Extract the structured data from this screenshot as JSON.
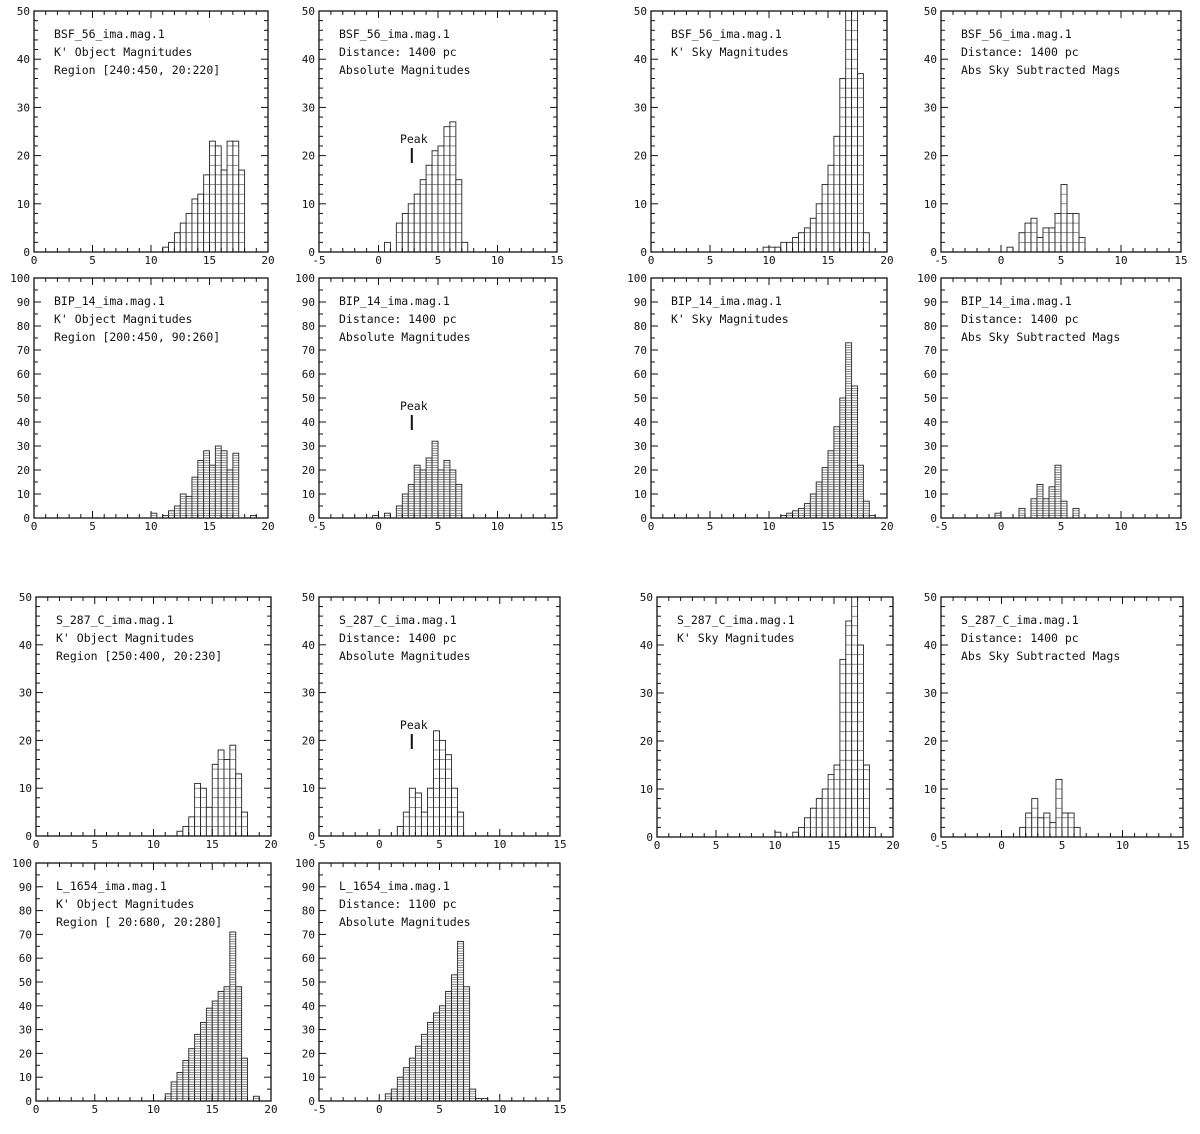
{
  "chart_data": [
    {
      "type": "bar",
      "label_lines": [
        "BSF_56_ima.mag.1",
        "K' Object Magnitudes",
        "Region [240:450, 20:220]"
      ],
      "xlim": [
        0,
        20
      ],
      "ylim": [
        0,
        50
      ],
      "bin_width": 0.5,
      "xticks": [
        0,
        5,
        10,
        15,
        20
      ],
      "yticks": [
        0,
        10,
        20,
        30,
        40,
        50
      ],
      "x": [
        11,
        11.5,
        12,
        12.5,
        13,
        13.5,
        14,
        14.5,
        15,
        15.5,
        16,
        16.5,
        17,
        17.5
      ],
      "values": [
        1,
        2,
        4,
        6,
        8,
        11,
        12,
        16,
        23,
        22,
        17,
        23,
        23,
        17
      ]
    },
    {
      "type": "bar",
      "label_lines": [
        "BSF_56_ima.mag.1",
        "Distance: 1400  pc",
        "Absolute Magnitudes"
      ],
      "xlim": [
        -5,
        15
      ],
      "ylim": [
        0,
        50
      ],
      "bin_width": 0.5,
      "xticks": [
        -5,
        0,
        5,
        10,
        15
      ],
      "yticks": [
        0,
        10,
        20,
        30,
        40,
        50
      ],
      "peak": {
        "x": 2.8,
        "text": "Peak"
      },
      "x": [
        0.5,
        1.5,
        2,
        2.5,
        3,
        3.5,
        4,
        4.5,
        5,
        5.5,
        6,
        6.5,
        7
      ],
      "values": [
        2,
        6,
        8,
        10,
        12,
        15,
        18,
        21,
        22,
        26,
        27,
        15,
        2
      ]
    },
    {
      "type": "bar",
      "label_lines": [
        "BSF_56_ima.mag.1",
        "K' Sky Magnitudes"
      ],
      "xlim": [
        0,
        20
      ],
      "ylim": [
        0,
        50
      ],
      "bin_width": 0.5,
      "xticks": [
        0,
        5,
        10,
        15,
        20
      ],
      "yticks": [
        0,
        10,
        20,
        30,
        40,
        50
      ],
      "x": [
        9.5,
        10,
        10.5,
        11,
        11.5,
        12,
        12.5,
        13,
        13.5,
        14,
        14.5,
        15,
        15.5,
        16,
        16.5,
        17,
        17.5,
        18
      ],
      "values": [
        1,
        1,
        1,
        2,
        2,
        3,
        4,
        5,
        7,
        10,
        14,
        18,
        24,
        36,
        50,
        50,
        37,
        4
      ]
    },
    {
      "type": "bar",
      "label_lines": [
        "BSF_56_ima.mag.1",
        "Distance: 1400  pc",
        "Abs Sky Subtracted Mags"
      ],
      "xlim": [
        -5,
        15
      ],
      "ylim": [
        0,
        50
      ],
      "bin_width": 0.5,
      "xticks": [
        -5,
        0,
        5,
        10,
        15
      ],
      "yticks": [
        0,
        10,
        20,
        30,
        40,
        50
      ],
      "x": [
        0.5,
        1.5,
        2,
        2.5,
        3,
        3.5,
        4,
        4.5,
        5,
        5.5,
        6,
        6.5
      ],
      "values": [
        1,
        4,
        6,
        7,
        3,
        5,
        5,
        8,
        14,
        8,
        8,
        3
      ]
    },
    {
      "type": "bar",
      "label_lines": [
        "BIP_14_ima.mag.1",
        "K' Object Magnitudes",
        "Region [200:450, 90:260]"
      ],
      "xlim": [
        0,
        20
      ],
      "ylim": [
        0,
        100
      ],
      "bin_width": 0.5,
      "xticks": [
        0,
        5,
        10,
        15,
        20
      ],
      "yticks": [
        0,
        10,
        20,
        30,
        40,
        50,
        60,
        70,
        80,
        90,
        100
      ],
      "x": [
        10,
        11,
        11.5,
        12,
        12.5,
        13,
        13.5,
        14,
        14.5,
        15,
        15.5,
        16,
        16.5,
        17,
        18.5
      ],
      "values": [
        2,
        1,
        3,
        5,
        10,
        9,
        17,
        24,
        28,
        22,
        30,
        28,
        20,
        27,
        1
      ]
    },
    {
      "type": "bar",
      "label_lines": [
        "BIP_14_ima.mag.1",
        "Distance: 1400  pc",
        "Absolute Magnitudes"
      ],
      "xlim": [
        -5,
        15
      ],
      "ylim": [
        0,
        100
      ],
      "bin_width": 0.5,
      "xticks": [
        -5,
        0,
        5,
        10,
        15
      ],
      "yticks": [
        0,
        10,
        20,
        30,
        40,
        50,
        60,
        70,
        80,
        90,
        100
      ],
      "peak": {
        "x": 2.8,
        "text": "Peak"
      },
      "x": [
        -0.5,
        0.5,
        1.5,
        2,
        2.5,
        3,
        3.5,
        4,
        4.5,
        5,
        5.5,
        6,
        6.5
      ],
      "values": [
        1,
        2,
        5,
        10,
        14,
        22,
        20,
        25,
        32,
        20,
        24,
        20,
        14
      ]
    },
    {
      "type": "bar",
      "label_lines": [
        "BIP_14_ima.mag.1",
        "K' Sky Magnitudes"
      ],
      "xlim": [
        0,
        20
      ],
      "ylim": [
        0,
        100
      ],
      "bin_width": 0.5,
      "xticks": [
        0,
        5,
        10,
        15,
        20
      ],
      "yticks": [
        0,
        10,
        20,
        30,
        40,
        50,
        60,
        70,
        80,
        90,
        100
      ],
      "x": [
        11,
        11.5,
        12,
        12.5,
        13,
        13.5,
        14,
        14.5,
        15,
        15.5,
        16,
        16.5,
        17,
        17.5,
        18,
        18.5
      ],
      "values": [
        1,
        2,
        3,
        4,
        6,
        10,
        15,
        21,
        28,
        38,
        50,
        73,
        55,
        22,
        7,
        1
      ]
    },
    {
      "type": "bar",
      "label_lines": [
        "BIP_14_ima.mag.1",
        "Distance: 1400  pc",
        "Abs Sky Subtracted Mags"
      ],
      "xlim": [
        -5,
        15
      ],
      "ylim": [
        0,
        100
      ],
      "bin_width": 0.5,
      "xticks": [
        -5,
        0,
        5,
        10,
        15
      ],
      "yticks": [
        0,
        10,
        20,
        30,
        40,
        50,
        60,
        70,
        80,
        90,
        100
      ],
      "x": [
        -0.5,
        1.5,
        2.5,
        3,
        3.5,
        4,
        4.5,
        5,
        6
      ],
      "values": [
        2,
        4,
        8,
        14,
        8,
        13,
        22,
        7,
        4
      ]
    },
    {
      "type": "bar",
      "label_lines": [
        "S_287_C_ima.mag.1",
        "K' Object Magnitudes",
        "Region [250:400, 20:230]"
      ],
      "xlim": [
        0,
        20
      ],
      "ylim": [
        0,
        50
      ],
      "bin_width": 0.5,
      "xticks": [
        0,
        5,
        10,
        15,
        20
      ],
      "yticks": [
        0,
        10,
        20,
        30,
        40,
        50
      ],
      "x": [
        12,
        12.5,
        13,
        13.5,
        14,
        14.5,
        15,
        15.5,
        16,
        16.5,
        17,
        17.5
      ],
      "values": [
        1,
        2,
        4,
        11,
        10,
        6,
        15,
        18,
        16,
        19,
        13,
        5
      ]
    },
    {
      "type": "bar",
      "label_lines": [
        "S_287_C_ima.mag.1",
        "Distance: 1400  pc",
        "Absolute Magnitudes"
      ],
      "xlim": [
        -5,
        15
      ],
      "ylim": [
        0,
        50
      ],
      "bin_width": 0.5,
      "xticks": [
        -5,
        0,
        5,
        10,
        15
      ],
      "yticks": [
        0,
        10,
        20,
        30,
        40,
        50
      ],
      "peak": {
        "x": 2.7,
        "text": "Peak"
      },
      "x": [
        1.5,
        2,
        2.5,
        3,
        3.5,
        4,
        4.5,
        5,
        5.5,
        6,
        6.5
      ],
      "values": [
        2,
        5,
        10,
        9,
        5,
        10,
        22,
        20,
        17,
        10,
        5
      ]
    },
    {
      "type": "bar",
      "label_lines": [
        "S_287_C_ima.mag.1",
        "K' Sky Magnitudes"
      ],
      "xlim": [
        0,
        20
      ],
      "ylim": [
        0,
        50
      ],
      "bin_width": 0.5,
      "xticks": [
        0,
        5,
        10,
        15,
        20
      ],
      "yticks": [
        0,
        10,
        20,
        30,
        40,
        50
      ],
      "x": [
        10,
        11.5,
        12,
        12.5,
        13,
        13.5,
        14,
        14.5,
        15,
        15.5,
        16,
        16.5,
        17,
        17.5,
        18
      ],
      "values": [
        1,
        1,
        2,
        4,
        6,
        8,
        10,
        13,
        15,
        37,
        45,
        50,
        40,
        15,
        2
      ]
    },
    {
      "type": "bar",
      "label_lines": [
        "S_287_C_ima.mag.1",
        "Distance: 1400  pc",
        "Abs Sky Subtracted Mags"
      ],
      "xlim": [
        -5,
        15
      ],
      "ylim": [
        0,
        50
      ],
      "bin_width": 0.5,
      "xticks": [
        -5,
        0,
        5,
        10,
        15
      ],
      "yticks": [
        0,
        10,
        20,
        30,
        40,
        50
      ],
      "x": [
        1.5,
        2,
        2.5,
        3,
        3.5,
        4,
        4.5,
        5,
        5.5,
        6
      ],
      "values": [
        2,
        5,
        8,
        4,
        5,
        3,
        12,
        5,
        5,
        2
      ]
    },
    {
      "type": "bar",
      "label_lines": [
        "L_1654_ima.mag.1",
        "K' Object Magnitudes",
        "Region [ 20:680, 20:280]"
      ],
      "xlim": [
        0,
        20
      ],
      "ylim": [
        0,
        100
      ],
      "bin_width": 0.5,
      "xticks": [
        0,
        5,
        10,
        15,
        20
      ],
      "yticks": [
        0,
        10,
        20,
        30,
        40,
        50,
        60,
        70,
        80,
        90,
        100
      ],
      "x": [
        11,
        11.5,
        12,
        12.5,
        13,
        13.5,
        14,
        14.5,
        15,
        15.5,
        16,
        16.5,
        17,
        17.5,
        18.5
      ],
      "values": [
        3,
        8,
        12,
        17,
        22,
        28,
        33,
        39,
        42,
        46,
        48,
        71,
        48,
        18,
        2
      ]
    },
    {
      "type": "bar",
      "label_lines": [
        "L_1654_ima.mag.1",
        "Distance: 1100  pc",
        "Absolute Magnitudes"
      ],
      "xlim": [
        -5,
        15
      ],
      "ylim": [
        0,
        100
      ],
      "bin_width": 0.5,
      "xticks": [
        -5,
        0,
        5,
        10,
        15
      ],
      "yticks": [
        0,
        10,
        20,
        30,
        40,
        50,
        60,
        70,
        80,
        90,
        100
      ],
      "x": [
        0.5,
        1,
        1.5,
        2,
        2.5,
        3,
        3.5,
        4,
        4.5,
        5,
        5.5,
        6,
        6.5,
        7,
        7.5,
        8,
        8.5
      ],
      "values": [
        3,
        5,
        10,
        14,
        18,
        23,
        28,
        33,
        37,
        40,
        46,
        53,
        67,
        48,
        5,
        1,
        1
      ]
    }
  ]
}
